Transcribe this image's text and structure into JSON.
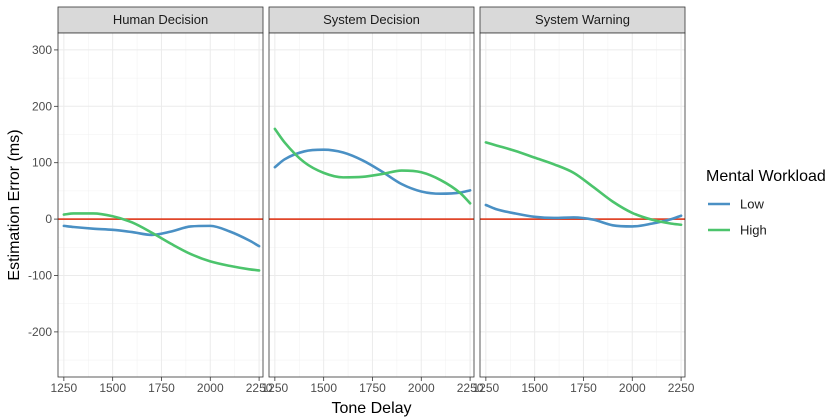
{
  "chart_data": {
    "type": "line",
    "xlabel": "Tone Delay",
    "ylabel": "Estimation Error (ms)",
    "xlim": [
      1220,
      2270
    ],
    "ylim": [
      -280,
      330
    ],
    "x_ticks": [
      1250,
      1500,
      1750,
      2000,
      2250
    ],
    "y_ticks": [
      -200,
      -100,
      0,
      100,
      200,
      300
    ],
    "x_tick_labels": [
      "1250",
      "1500",
      "1750",
      "2000",
      "2250"
    ],
    "y_tick_labels": [
      "-200",
      "-100",
      "0",
      "100",
      "200",
      "300"
    ],
    "reference_line": {
      "y": 0,
      "color": "#e0462a"
    },
    "grid": true,
    "legend": {
      "title": "Mental Workload",
      "position": "right",
      "entries": [
        {
          "name": "Low",
          "color": "#4a90c4"
        },
        {
          "name": "High",
          "color": "#4cc46c"
        }
      ]
    },
    "panels": [
      {
        "title": "Human Decision",
        "series": [
          {
            "name": "Low",
            "color": "#4a90c4",
            "x": [
              1250,
              1300,
              1400,
              1500,
              1600,
              1700,
              1800,
              1900,
              2000,
              2100,
              2200,
              2250
            ],
            "y": [
              -12,
              -14,
              -17,
              -19,
              -23,
              -28,
              -22,
              -13,
              -12,
              -22,
              -38,
              -48
            ]
          },
          {
            "name": "High",
            "color": "#4cc46c",
            "x": [
              1250,
              1300,
              1400,
              1500,
              1600,
              1700,
              1800,
              1900,
              2000,
              2100,
              2200,
              2250
            ],
            "y": [
              8,
              10,
              10,
              5,
              -6,
              -24,
              -44,
              -62,
              -75,
              -83,
              -89,
              -91
            ]
          }
        ]
      },
      {
        "title": "System Decision",
        "series": [
          {
            "name": "Low",
            "color": "#4a90c4",
            "x": [
              1250,
              1300,
              1400,
              1500,
              1600,
              1700,
              1800,
              1900,
              2000,
              2100,
              2200,
              2250
            ],
            "y": [
              92,
              106,
              120,
              123,
              118,
              104,
              84,
              62,
              49,
              45,
              47,
              51
            ]
          },
          {
            "name": "High",
            "color": "#4cc46c",
            "x": [
              1250,
              1300,
              1400,
              1500,
              1600,
              1700,
              1800,
              1900,
              2000,
              2100,
              2200,
              2250
            ],
            "y": [
              160,
              136,
              101,
              82,
              74,
              75,
              80,
              86,
              83,
              69,
              46,
              28
            ]
          }
        ]
      },
      {
        "title": "System Warning",
        "series": [
          {
            "name": "Low",
            "color": "#4a90c4",
            "x": [
              1250,
              1300,
              1400,
              1500,
              1600,
              1700,
              1800,
              1900,
              2000,
              2100,
              2200,
              2250
            ],
            "y": [
              25,
              18,
              10,
              4,
              2,
              3,
              -1,
              -11,
              -13,
              -8,
              0,
              6
            ]
          },
          {
            "name": "High",
            "color": "#4cc46c",
            "x": [
              1250,
              1300,
              1400,
              1500,
              1600,
              1700,
              1800,
              1900,
              2000,
              2100,
              2200,
              2250
            ],
            "y": [
              136,
              131,
              121,
              109,
              97,
              82,
              57,
              31,
              11,
              -1,
              -8,
              -10
            ]
          }
        ]
      }
    ]
  }
}
